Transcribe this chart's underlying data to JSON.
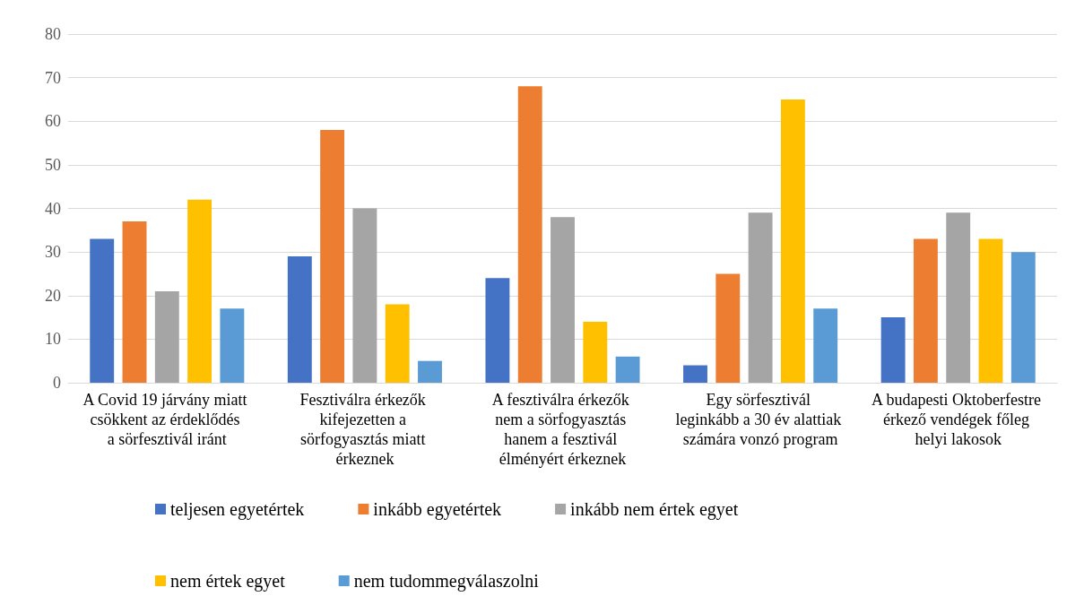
{
  "chart_data": {
    "type": "bar",
    "categories": [
      "A Covid 19 járvány miatt csökkent az érdeklődés a sörfesztivál iránt",
      "Fesztiválra érkezők kifejezetten a sörfogyasztás miatt érkeznek",
      "A fesztiválra érkezők nem a sörfogyasztás hanem a fesztivál élményért érkeznek",
      "Egy sörfesztivál leginkább a 30 év alattiak számára vonzó program",
      "A budapesti Oktoberfestre érkező vendégek főleg helyi lakosok"
    ],
    "series": [
      {
        "name": "teljesen egyetértek",
        "color": "#4472c4",
        "values": [
          33,
          29,
          24,
          4,
          15
        ]
      },
      {
        "name": "inkább egyetértek",
        "color": "#ed7d31",
        "values": [
          37,
          58,
          68,
          25,
          33
        ]
      },
      {
        "name": "inkább nem értek egyet",
        "color": "#a5a5a5",
        "values": [
          21,
          40,
          38,
          39,
          39
        ]
      },
      {
        "name": "nem értek egyet",
        "color": "#ffc000",
        "values": [
          42,
          18,
          14,
          65,
          33
        ]
      },
      {
        "name": "nem tudommegválaszolni",
        "color": "#5b9bd5",
        "values": [
          17,
          5,
          6,
          17,
          30
        ]
      }
    ],
    "ylim": [
      0,
      80
    ],
    "yticks": [
      0,
      10,
      20,
      30,
      40,
      50,
      60,
      70,
      80
    ],
    "grid": "y",
    "legend": "bottom"
  }
}
